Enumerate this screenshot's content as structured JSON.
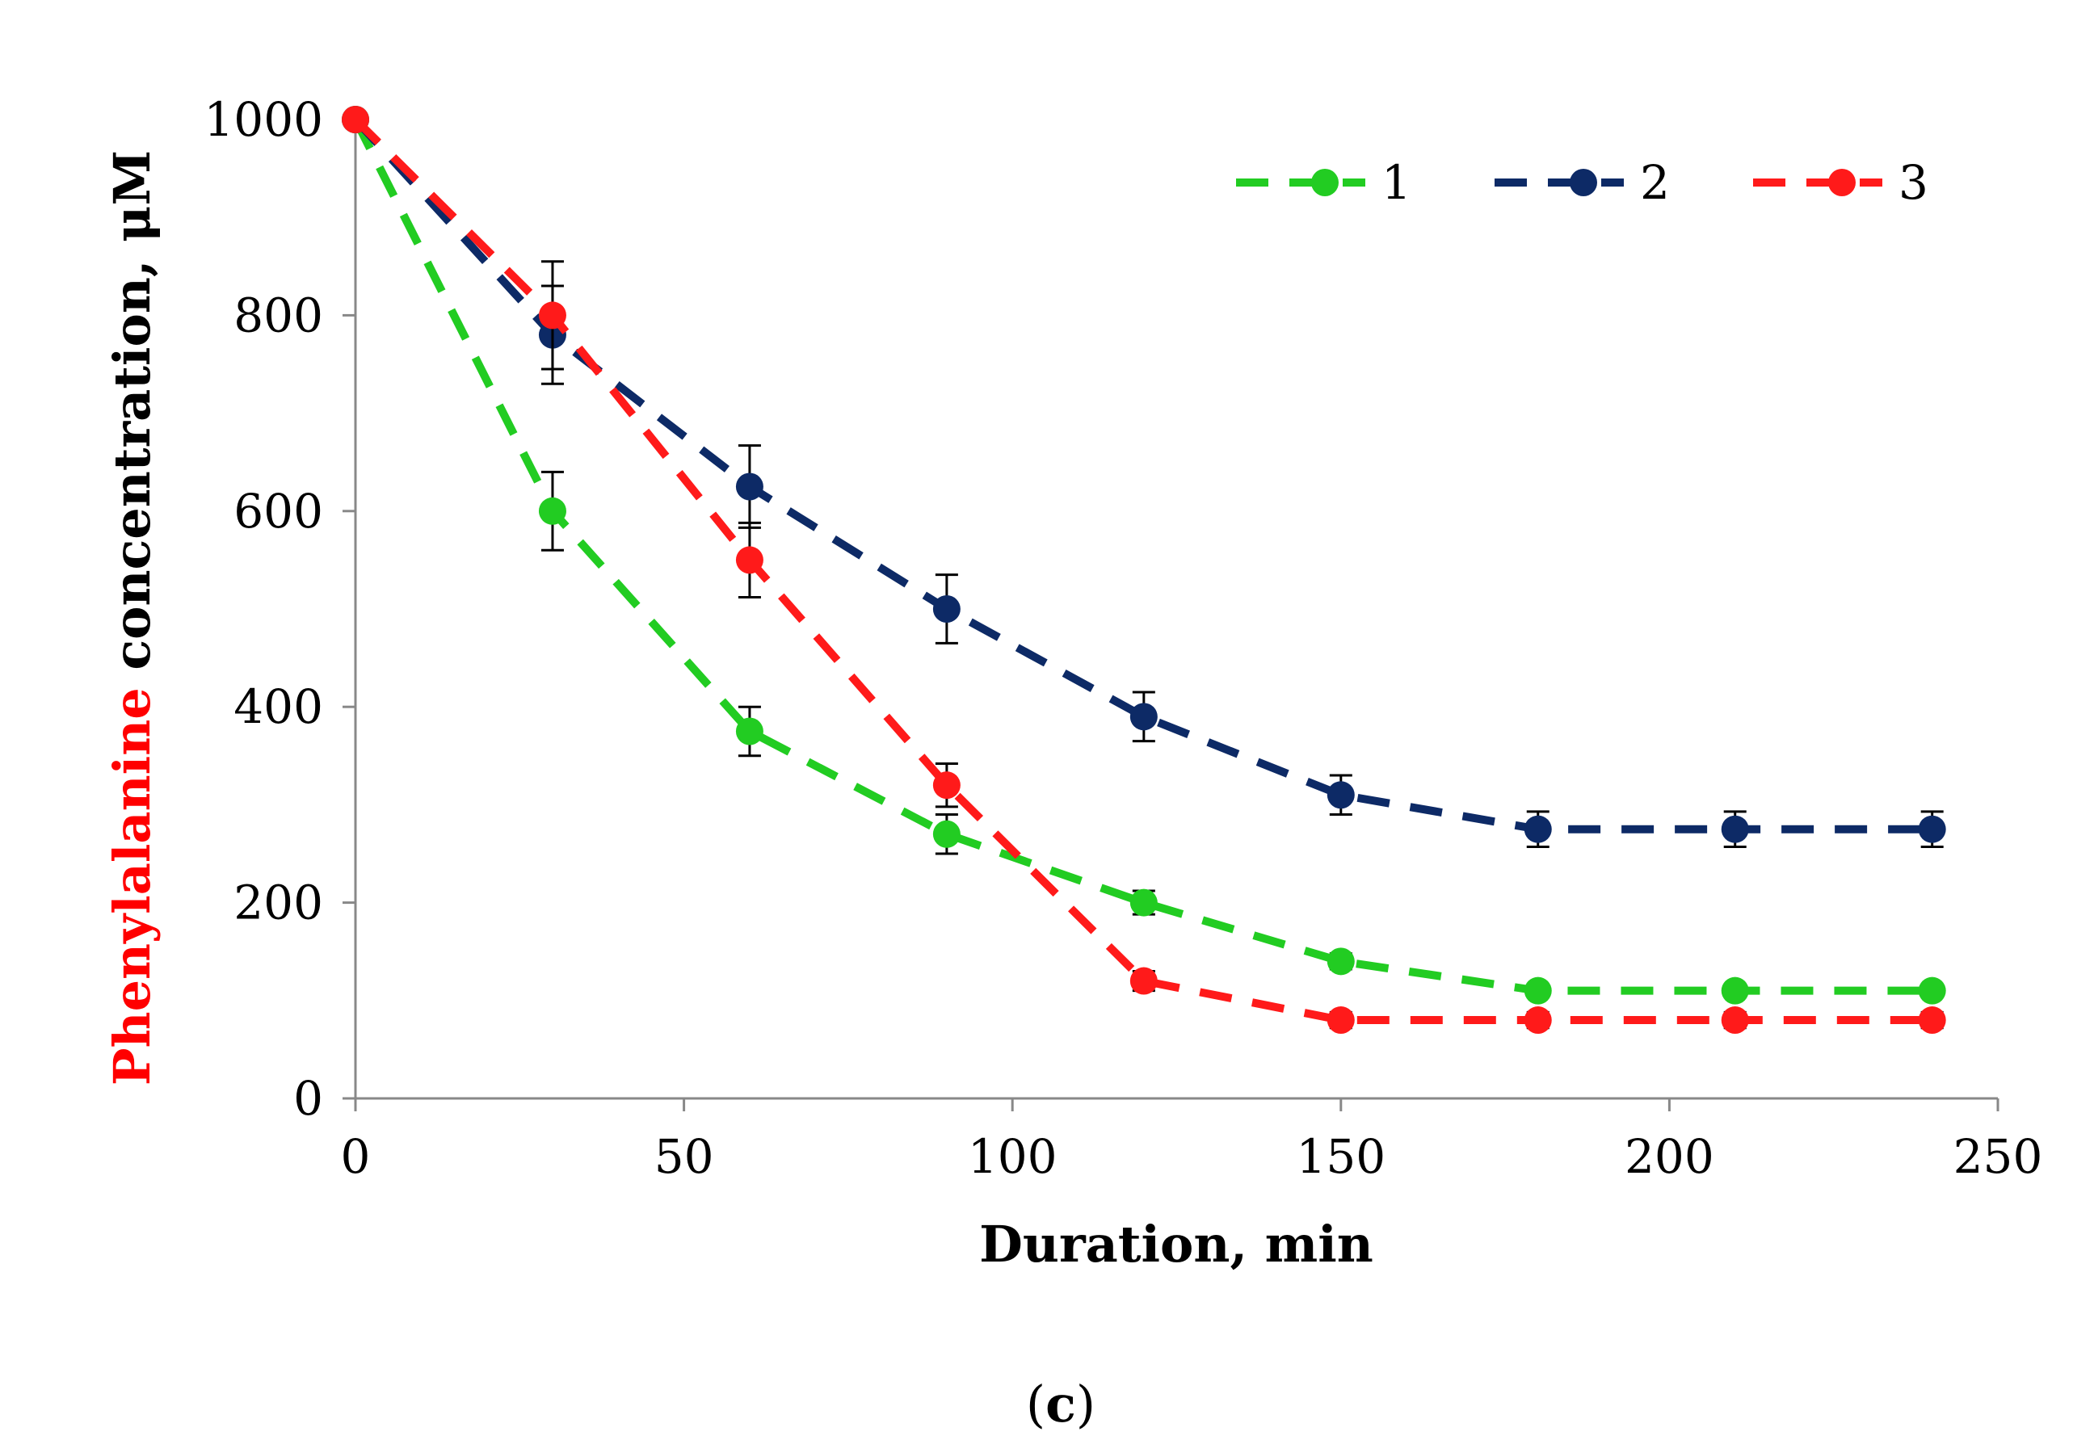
{
  "chart_data": {
    "type": "line",
    "title": "",
    "xlabel": "Duration, min",
    "ylabel_parts": [
      {
        "text": "Phenylalanine",
        "color": "#ff0000"
      },
      {
        "text": " concentration, μM",
        "color": "#000000"
      }
    ],
    "xlim": [
      0,
      250
    ],
    "ylim": [
      0,
      1000
    ],
    "xticks": [
      0,
      50,
      100,
      150,
      200,
      250
    ],
    "yticks": [
      0,
      200,
      400,
      600,
      800,
      1000
    ],
    "grid": false,
    "legend_position": "top-right",
    "x": [
      0,
      30,
      60,
      90,
      120,
      150,
      180,
      210,
      240
    ],
    "series": [
      {
        "name": "1",
        "color": "#22cc22",
        "values": [
          1000,
          600,
          375,
          270,
          200,
          140,
          110,
          110,
          110
        ],
        "errors": [
          0,
          40,
          25,
          20,
          12,
          8,
          6,
          6,
          6
        ]
      },
      {
        "name": "2",
        "color": "#0d2a66",
        "values": [
          1000,
          780,
          625,
          500,
          390,
          310,
          275,
          275,
          275
        ],
        "errors": [
          0,
          50,
          42,
          35,
          25,
          20,
          18,
          18,
          18
        ]
      },
      {
        "name": "3",
        "color": "#ff1a1a",
        "values": [
          1000,
          800,
          550,
          320,
          120,
          80,
          80,
          80,
          80
        ],
        "errors": [
          0,
          55,
          38,
          22,
          10,
          8,
          8,
          8,
          8
        ]
      }
    ]
  },
  "caption": {
    "open": "(",
    "letter": "c",
    "close": ")"
  }
}
